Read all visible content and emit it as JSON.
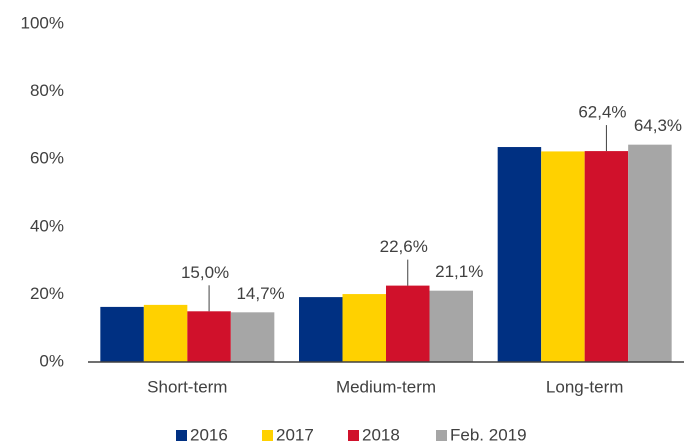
{
  "chart_data": {
    "type": "bar",
    "categories": [
      "Short-term",
      "Medium-term",
      "Long-term"
    ],
    "series": [
      {
        "name": "2016",
        "color": "#003082",
        "values": [
          16.3,
          19.2,
          63.6
        ]
      },
      {
        "name": "2017",
        "color": "#ffd100",
        "values": [
          16.9,
          20.1,
          62.3
        ]
      },
      {
        "name": "2018",
        "color": "#d0112b",
        "values": [
          15.0,
          22.6,
          62.4
        ],
        "value_labels": [
          "15,0%",
          "22,6%",
          "62,4%"
        ]
      },
      {
        "name": "Feb. 2019",
        "color": "#a6a6a6",
        "values": [
          14.7,
          21.1,
          64.3
        ],
        "value_labels": [
          "14,7%",
          "21,1%",
          "64,3%"
        ]
      }
    ],
    "ylim": [
      0,
      100
    ],
    "yticks": [
      {
        "value": 0,
        "label": "0%"
      },
      {
        "value": 20,
        "label": "20%"
      },
      {
        "value": 40,
        "label": "40%"
      },
      {
        "value": 60,
        "label": "60%"
      },
      {
        "value": 80,
        "label": "80%"
      },
      {
        "value": 100,
        "label": "100%"
      }
    ],
    "grid": false
  }
}
